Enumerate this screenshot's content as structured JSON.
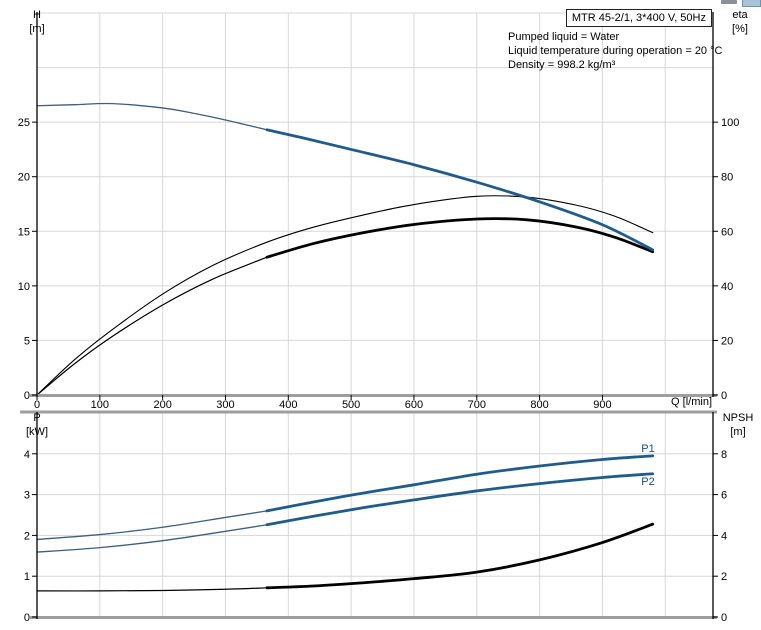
{
  "header": {
    "model_label": "MTR 45-2/1, 3*400 V, 50Hz",
    "info_lines": [
      "Pumped liquid = Water",
      "Liquid temperature during operation = 20 °C",
      "Density = 998.2 kg/m³"
    ]
  },
  "axis_titles": {
    "top_left": [
      "H",
      "[m]"
    ],
    "top_right": [
      "eta",
      "[%]"
    ],
    "bottom_left": [
      "P",
      "[kW]"
    ],
    "bottom_right": [
      "NPSH",
      "[m]"
    ]
  },
  "colors": {
    "blue_thick": "#1f5c8d",
    "blue_thin": "#3f5f7e",
    "black": "#000000",
    "grid": "#d7d7d7",
    "border_gray": "#9e9e9e",
    "axis": "#000000",
    "blue_label": "#1b4e78"
  },
  "chart_data": [
    {
      "id": "head-efficiency-chart",
      "type": "line",
      "xlabel": "Q [l/min]",
      "ylabel_left": "H [m]",
      "ylabel_right": "eta [%]",
      "x_range": [
        0,
        1076
      ],
      "x_tick_values": [
        0,
        100,
        200,
        300,
        400,
        500,
        600,
        700,
        800,
        900
      ],
      "x_grid_values": [
        100,
        200,
        300,
        400,
        500,
        600,
        700,
        800,
        900,
        1000
      ],
      "left_range": [
        0,
        35
      ],
      "left_ticks": [
        0,
        5,
        10,
        15,
        20,
        25
      ],
      "left_grid": [
        5,
        10,
        15,
        20,
        25,
        30
      ],
      "right_range": [
        0,
        140
      ],
      "right_ticks": [
        0,
        20,
        40,
        60,
        80,
        100
      ],
      "series": [
        {
          "name": "eta-pump",
          "axis": "right",
          "style": "black-thin",
          "points": [
            [
              0,
              0
            ],
            [
              60,
              13
            ],
            [
              120,
              24
            ],
            [
              200,
              37
            ],
            [
              280,
              47.5
            ],
            [
              366,
              56
            ],
            [
              440,
              61.5
            ],
            [
              520,
              66
            ],
            [
              600,
              69.8
            ],
            [
              700,
              72.8
            ],
            [
              780,
              72.5
            ],
            [
              860,
              69.5
            ],
            [
              920,
              65.5
            ],
            [
              980,
              59.5
            ]
          ]
        },
        {
          "name": "eta-pump-motor",
          "axis": "right",
          "style": "black",
          "split": 366,
          "points": [
            [
              0,
              0
            ],
            [
              60,
              11.5
            ],
            [
              120,
              21.5
            ],
            [
              200,
              33
            ],
            [
              280,
              42.5
            ],
            [
              366,
              50.5
            ],
            [
              440,
              55.5
            ],
            [
              520,
              59.5
            ],
            [
              600,
              62.5
            ],
            [
              700,
              64.5
            ],
            [
              780,
              64.2
            ],
            [
              860,
              61.5
            ],
            [
              920,
              57.8
            ],
            [
              980,
              52.5
            ]
          ]
        },
        {
          "name": "H-Q-curve",
          "axis": "left",
          "style": "blue",
          "split": 366,
          "points": [
            [
              0,
              26.5
            ],
            [
              60,
              26.6
            ],
            [
              120,
              26.7
            ],
            [
              200,
              26.3
            ],
            [
              250,
              25.8
            ],
            [
              300,
              25.2
            ],
            [
              366,
              24.3
            ],
            [
              420,
              23.6
            ],
            [
              500,
              22.5
            ],
            [
              600,
              21.1
            ],
            [
              700,
              19.5
            ],
            [
              800,
              17.7
            ],
            [
              900,
              15.6
            ],
            [
              980,
              13.3
            ]
          ]
        }
      ]
    },
    {
      "id": "power-npsh-chart",
      "type": "line",
      "xlabel": "",
      "ylabel_left": "P [kW]",
      "ylabel_right": "NPSH [m]",
      "x_range": [
        0,
        1076
      ],
      "x_tick_values": [],
      "x_grid_values": [
        100,
        200,
        300,
        400,
        500,
        600,
        700,
        800,
        900,
        1000
      ],
      "left_range": [
        0,
        5
      ],
      "left_ticks": [
        0,
        1,
        2,
        3,
        4
      ],
      "left_grid": [
        1,
        2,
        3,
        4
      ],
      "right_range": [
        0,
        10
      ],
      "right_ticks": [
        0,
        2,
        4,
        6,
        8
      ],
      "series": [
        {
          "name": "P1-power-curve",
          "label": "P1",
          "axis": "left",
          "style": "blue",
          "split": 366,
          "points": [
            [
              0,
              1.9
            ],
            [
              100,
              2.02
            ],
            [
              200,
              2.2
            ],
            [
              300,
              2.44
            ],
            [
              366,
              2.6
            ],
            [
              440,
              2.82
            ],
            [
              520,
              3.04
            ],
            [
              600,
              3.24
            ],
            [
              700,
              3.5
            ],
            [
              800,
              3.7
            ],
            [
              900,
              3.86
            ],
            [
              980,
              3.95
            ]
          ]
        },
        {
          "name": "P2-power-curve",
          "label": "P2",
          "axis": "left",
          "style": "blue",
          "split": 366,
          "points": [
            [
              0,
              1.59
            ],
            [
              100,
              1.7
            ],
            [
              200,
              1.87
            ],
            [
              300,
              2.1
            ],
            [
              366,
              2.26
            ],
            [
              440,
              2.47
            ],
            [
              520,
              2.68
            ],
            [
              600,
              2.87
            ],
            [
              700,
              3.09
            ],
            [
              800,
              3.27
            ],
            [
              900,
              3.42
            ],
            [
              980,
              3.51
            ]
          ]
        },
        {
          "name": "NPSH-curve",
          "axis": "right",
          "style": "black",
          "split": 366,
          "points": [
            [
              0,
              1.28
            ],
            [
              100,
              1.28
            ],
            [
              200,
              1.3
            ],
            [
              300,
              1.36
            ],
            [
              366,
              1.43
            ],
            [
              440,
              1.52
            ],
            [
              520,
              1.68
            ],
            [
              600,
              1.88
            ],
            [
              700,
              2.2
            ],
            [
              800,
              2.8
            ],
            [
              900,
              3.65
            ],
            [
              980,
              4.55
            ]
          ]
        }
      ]
    }
  ]
}
